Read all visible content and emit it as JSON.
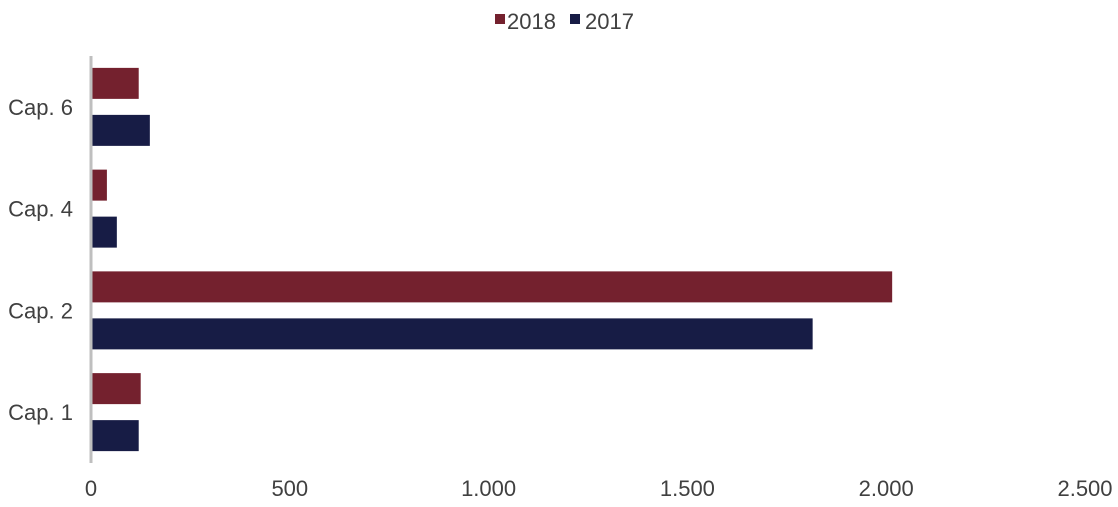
{
  "chart_data": {
    "type": "bar",
    "orientation": "horizontal",
    "categories": [
      "Cap. 1",
      "Cap. 2",
      "Cap. 4",
      "Cap. 6"
    ],
    "series": [
      {
        "name": "2018",
        "color": "#74212e",
        "values": [
          125,
          2015,
          40,
          120
        ]
      },
      {
        "name": "2017",
        "color": "#171c45",
        "values": [
          120,
          1815,
          65,
          148
        ]
      }
    ],
    "xlim": [
      0,
      2500
    ],
    "xticks": [
      0,
      500,
      1000,
      1500,
      2000,
      2500
    ],
    "xtick_labels": [
      "0",
      "500",
      "1.000",
      "1.500",
      "2.000",
      "2.500"
    ],
    "legend": {
      "position": "top"
    },
    "grid": false,
    "title": "",
    "xlabel": "",
    "ylabel": ""
  }
}
